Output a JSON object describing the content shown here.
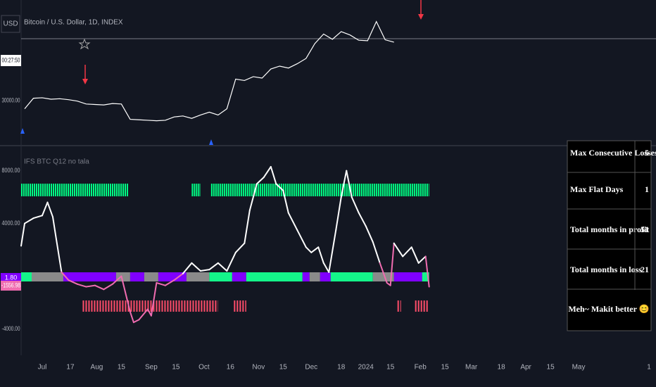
{
  "chart_data": [
    {
      "type": "line",
      "title": "Bitcoin / U.S. Dollar, 1D, INDEX",
      "color": "#ffffff",
      "xlim": [
        -12,
        349
      ],
      "ylim": [
        20900,
        51000
      ],
      "yticks": [
        {
          "value": 30000,
          "label": "30000.00"
        }
      ],
      "x": [
        -10,
        -5,
        0,
        5,
        10,
        15,
        20,
        25,
        30,
        35,
        40,
        45,
        50,
        55,
        60,
        65,
        70,
        75,
        80,
        85,
        90,
        95,
        100,
        105,
        110,
        115,
        120,
        125,
        130,
        135,
        140,
        145,
        150,
        155,
        160,
        165,
        170,
        175,
        180,
        185,
        190,
        195,
        200
      ],
      "values": [
        28300,
        30500,
        30600,
        30300,
        30400,
        30200,
        29900,
        29300,
        29200,
        29100,
        29400,
        29300,
        26100,
        26000,
        25900,
        25800,
        25900,
        26600,
        26800,
        26300,
        27000,
        27600,
        27000,
        28300,
        34500,
        34200,
        35000,
        34700,
        36600,
        37200,
        36800,
        37700,
        38800,
        41900,
        43900,
        42800,
        44400,
        43700,
        42600,
        42500,
        46500,
        42700,
        42200
      ]
    },
    {
      "type": "line",
      "title": "IFS BTC Q12 no tala",
      "color": "#ffffff",
      "negative_color": "#f06cb0",
      "xlim": [
        -12,
        349
      ],
      "ylim": [
        -6000,
        9900
      ],
      "yticks": [
        {
          "value": 8000,
          "label": "8000.00"
        },
        {
          "value": 4000,
          "label": "4000.00"
        },
        {
          "value": -4000,
          "label": "-4000.00"
        }
      ],
      "xticks": [
        {
          "value": 0,
          "label": "Jul"
        },
        {
          "value": 16,
          "label": "17"
        },
        {
          "value": 31,
          "label": "Aug"
        },
        {
          "value": 45,
          "label": "15"
        },
        {
          "value": 62,
          "label": "Sep"
        },
        {
          "value": 76,
          "label": "15"
        },
        {
          "value": 92,
          "label": "Oct"
        },
        {
          "value": 107,
          "label": "16"
        },
        {
          "value": 123,
          "label": "Nov"
        },
        {
          "value": 137,
          "label": "15"
        },
        {
          "value": 153,
          "label": "Dec"
        },
        {
          "value": 170,
          "label": "18"
        },
        {
          "value": 184,
          "label": "2024"
        },
        {
          "value": 198,
          "label": "15"
        },
        {
          "value": 215,
          "label": "Feb"
        },
        {
          "value": 229,
          "label": "15"
        },
        {
          "value": 244,
          "label": "Mar"
        },
        {
          "value": 261,
          "label": "18"
        },
        {
          "value": 275,
          "label": "Apr"
        },
        {
          "value": 289,
          "label": "15"
        },
        {
          "value": 305,
          "label": "May"
        },
        {
          "value": 345,
          "label": "1"
        }
      ],
      "x": [
        -12,
        -10,
        -5,
        0,
        3,
        6,
        8,
        11,
        15,
        20,
        25,
        30,
        35,
        40,
        45,
        50,
        52,
        55,
        60,
        62,
        65,
        70,
        75,
        80,
        85,
        90,
        95,
        100,
        105,
        110,
        115,
        118,
        122,
        126,
        130,
        133,
        137,
        140,
        145,
        150,
        153,
        157,
        160,
        163,
        167,
        170,
        173,
        176,
        180,
        184,
        188,
        192,
        196,
        198,
        200,
        205,
        210,
        214,
        218,
        220
      ],
      "values": [
        2300,
        4000,
        4400,
        4600,
        5600,
        4500,
        2800,
        300,
        -300,
        -600,
        -800,
        -700,
        -1000,
        -600,
        0,
        -2700,
        -3500,
        -3300,
        -2500,
        -3000,
        -500,
        -700,
        -300,
        200,
        1000,
        400,
        500,
        1000,
        400,
        1800,
        2500,
        5000,
        7000,
        7500,
        8300,
        7000,
        6500,
        4800,
        3500,
        2200,
        1800,
        2200,
        1000,
        300,
        3500,
        6000,
        8000,
        6000,
        4800,
        3800,
        2600,
        1000,
        -500,
        -700,
        2500,
        1500,
        2200,
        1000,
        1500,
        -800
      ],
      "long_color": "#00ff84",
      "long_segments": [
        [
          -12,
          49
        ],
        [
          85,
          90
        ],
        [
          96,
          220
        ]
      ],
      "short_color": "#ff4d6a",
      "short_segments": [
        [
          23,
          100
        ],
        [
          109,
          116
        ],
        [
          202,
          204
        ],
        [
          212,
          220
        ]
      ],
      "signal_band": [
        {
          "start": -12,
          "end": -6,
          "color": "#14f58a"
        },
        {
          "start": -6,
          "end": 12,
          "color": "#8a8a8a"
        },
        {
          "start": 12,
          "end": 42,
          "color": "#8000ff"
        },
        {
          "start": 42,
          "end": 50,
          "color": "#8a8a8a"
        },
        {
          "start": 50,
          "end": 58,
          "color": "#8000ff"
        },
        {
          "start": 58,
          "end": 66,
          "color": "#8a8a8a"
        },
        {
          "start": 66,
          "end": 82,
          "color": "#8000ff"
        },
        {
          "start": 82,
          "end": 95,
          "color": "#8a8a8a"
        },
        {
          "start": 95,
          "end": 108,
          "color": "#14f58a"
        },
        {
          "start": 108,
          "end": 116,
          "color": "#8000ff"
        },
        {
          "start": 116,
          "end": 148,
          "color": "#14f58a"
        },
        {
          "start": 148,
          "end": 152,
          "color": "#8000ff"
        },
        {
          "start": 152,
          "end": 158,
          "color": "#8a8a8a"
        },
        {
          "start": 158,
          "end": 164,
          "color": "#8000ff"
        },
        {
          "start": 164,
          "end": 188,
          "color": "#14f58a"
        },
        {
          "start": 188,
          "end": 200,
          "color": "#8a8a8a"
        },
        {
          "start": 200,
          "end": 216,
          "color": "#8000ff"
        },
        {
          "start": 216,
          "end": 220,
          "color": "#14f58a"
        }
      ]
    }
  ],
  "ui": {
    "currency": "USD",
    "countdown": "00:27:50",
    "last_signal": "1.80",
    "last_value": "-1556.98"
  },
  "stats_table": {
    "rows": [
      [
        "Max Consecutive Losses",
        "5"
      ],
      [
        "Max Flat Days",
        "1"
      ],
      [
        "Total months in profit",
        "51"
      ],
      [
        "Total months in loss",
        "21"
      ]
    ],
    "footer": "Meh~ Makit better 😊"
  }
}
